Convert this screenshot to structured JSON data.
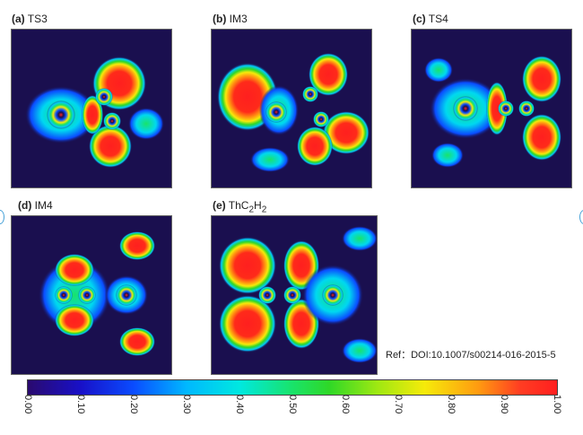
{
  "panels": [
    {
      "tag": "(a)",
      "name": "TS3"
    },
    {
      "tag": "(b)",
      "name": "IM3"
    },
    {
      "tag": "(c)",
      "name": "TS4"
    },
    {
      "tag": "(d)",
      "name": "IM4"
    },
    {
      "tag": "(e)",
      "name": "ThC",
      "sub1": "2",
      "mid": "H",
      "sub2": "2"
    }
  ],
  "reference": "Ref：DOI:10.1007/s00214-016-2015-5",
  "colorbar": {
    "ticks": [
      "0.00",
      "0.10",
      "0.20",
      "0.30",
      "0.40",
      "0.50",
      "0.60",
      "0.70",
      "0.80",
      "0.90",
      "1.00"
    ]
  }
}
